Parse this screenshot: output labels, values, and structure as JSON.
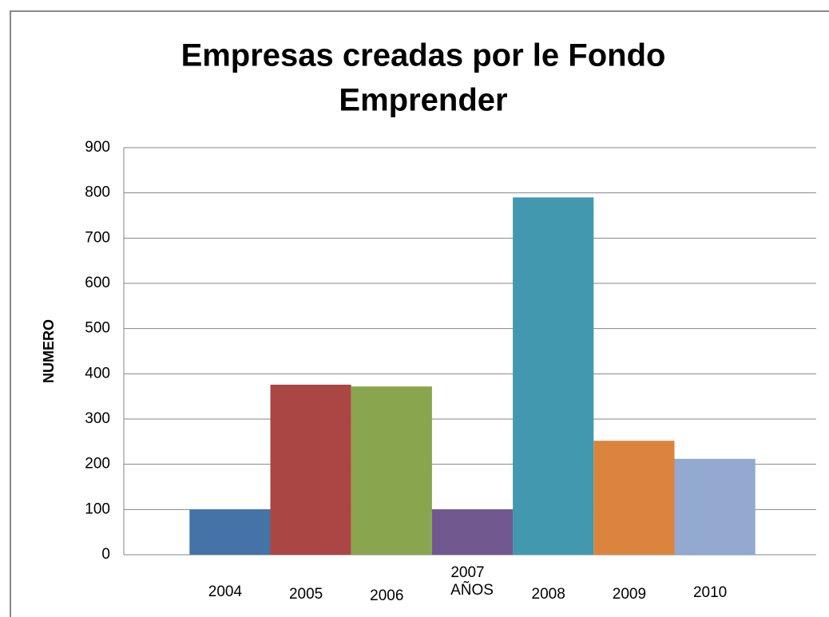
{
  "chart_data": {
    "type": "bar",
    "title": [
      "Empresas creadas por le Fondo",
      "Emprender"
    ],
    "x_label": "AÑOS",
    "y_label": "NUMERO",
    "categories": [
      "2004",
      "2005",
      "2006",
      "2007",
      "2008",
      "2009",
      "2010"
    ],
    "values": [
      100,
      376,
      372,
      100,
      790,
      252,
      212
    ],
    "colors": [
      "#4572a7",
      "#aa4643",
      "#89a54e",
      "#71588f",
      "#4198af",
      "#db843d",
      "#93a9cf"
    ],
    "ylim": [
      0,
      900
    ],
    "yticks": [
      0,
      100,
      200,
      300,
      400,
      500,
      600,
      700,
      800,
      900
    ],
    "grid": true
  }
}
